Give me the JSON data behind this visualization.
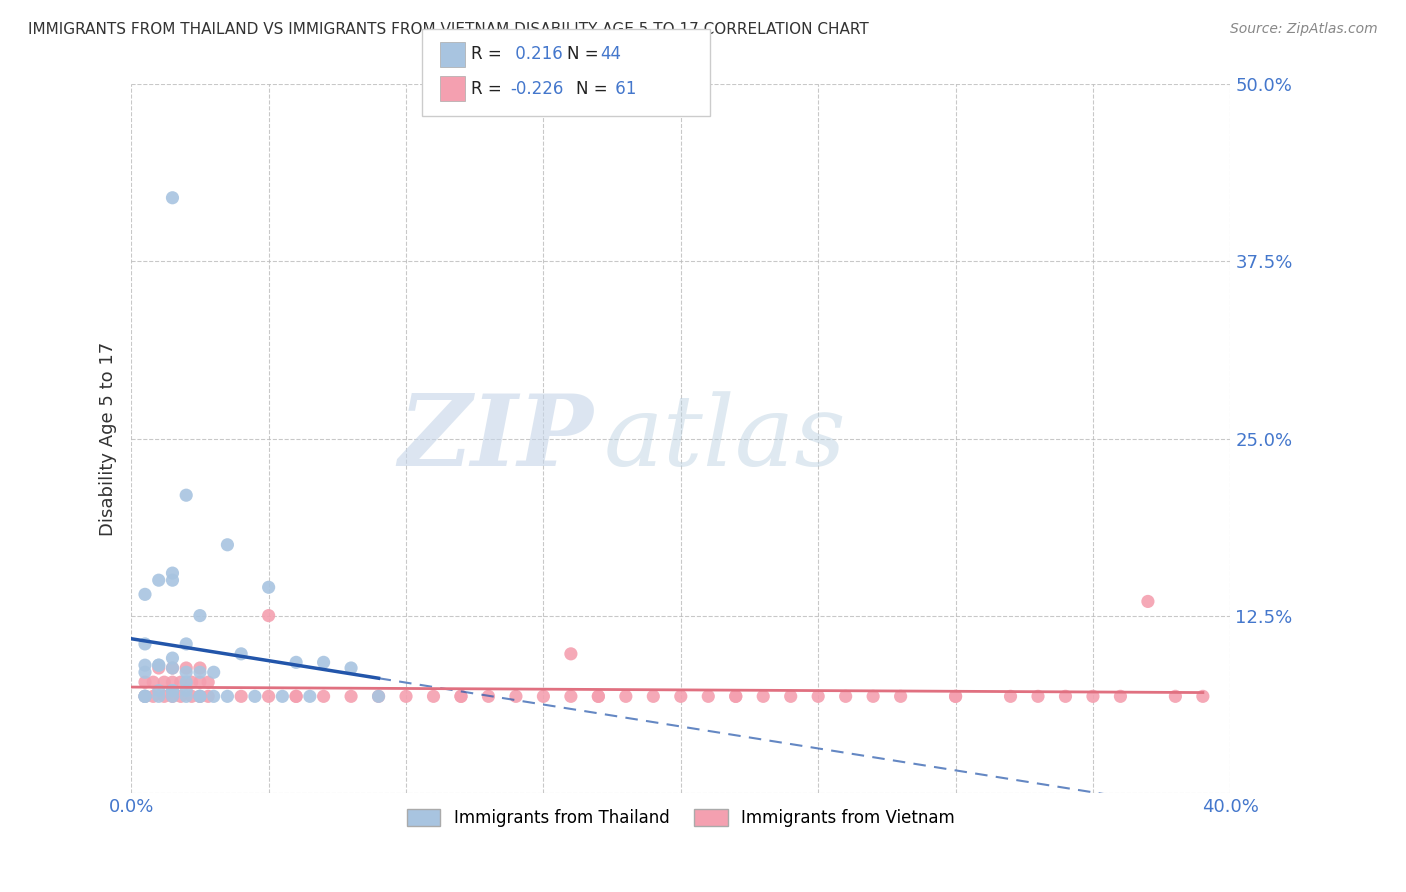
{
  "title": "IMMIGRANTS FROM THAILAND VS IMMIGRANTS FROM VIETNAM DISABILITY AGE 5 TO 17 CORRELATION CHART",
  "source": "Source: ZipAtlas.com",
  "ylabel": "Disability Age 5 to 17",
  "xlim": [
    0.0,
    0.4
  ],
  "ylim": [
    0.0,
    0.5
  ],
  "ytick_vals": [
    0.0,
    0.125,
    0.25,
    0.375,
    0.5
  ],
  "ytick_labels": [
    "",
    "12.5%",
    "25.0%",
    "37.5%",
    "50.0%"
  ],
  "xtick_vals": [
    0.0,
    0.05,
    0.1,
    0.15,
    0.2,
    0.25,
    0.3,
    0.35,
    0.4
  ],
  "xtick_labels": [
    "0.0%",
    "",
    "",
    "",
    "",
    "",
    "",
    "",
    "40.0%"
  ],
  "thailand_color": "#a8c4e0",
  "vietnam_color": "#f4a0b0",
  "thailand_line_color": "#2255aa",
  "vietnam_line_color": "#e07080",
  "r_thailand": 0.216,
  "n_thailand": 44,
  "r_vietnam": -0.226,
  "n_vietnam": 61,
  "legend_label_thailand": "Immigrants from Thailand",
  "legend_label_vietnam": "Immigrants from Vietnam",
  "watermark_zip": "ZIP",
  "watermark_atlas": "atlas",
  "background_color": "#ffffff",
  "grid_color": "#bbbbbb",
  "title_color": "#333333",
  "axis_label_color": "#333333",
  "tick_label_color": "#4477cc",
  "thailand_scatter_x": [
    0.015,
    0.02,
    0.005,
    0.005,
    0.01,
    0.015,
    0.02,
    0.01,
    0.015,
    0.005,
    0.025,
    0.015,
    0.02,
    0.01,
    0.005,
    0.025,
    0.03,
    0.015,
    0.02,
    0.035,
    0.04,
    0.05,
    0.06,
    0.07,
    0.065,
    0.045,
    0.055,
    0.035,
    0.08,
    0.09,
    0.01,
    0.02,
    0.015,
    0.005,
    0.025,
    0.03,
    0.015,
    0.02,
    0.015,
    0.005,
    0.015,
    0.025,
    0.01,
    0.005
  ],
  "thailand_scatter_y": [
    0.42,
    0.21,
    0.105,
    0.14,
    0.15,
    0.155,
    0.085,
    0.09,
    0.095,
    0.09,
    0.125,
    0.15,
    0.105,
    0.09,
    0.085,
    0.085,
    0.085,
    0.088,
    0.078,
    0.175,
    0.098,
    0.145,
    0.092,
    0.092,
    0.068,
    0.068,
    0.068,
    0.068,
    0.088,
    0.068,
    0.072,
    0.072,
    0.072,
    0.068,
    0.068,
    0.068,
    0.072,
    0.068,
    0.072,
    0.068,
    0.068,
    0.068,
    0.068,
    0.068
  ],
  "vietnam_scatter_x": [
    0.005,
    0.008,
    0.012,
    0.015,
    0.018,
    0.022,
    0.025,
    0.028,
    0.005,
    0.008,
    0.012,
    0.015,
    0.018,
    0.022,
    0.025,
    0.028,
    0.01,
    0.015,
    0.02,
    0.025,
    0.04,
    0.05,
    0.06,
    0.07,
    0.08,
    0.09,
    0.1,
    0.11,
    0.12,
    0.13,
    0.14,
    0.15,
    0.16,
    0.17,
    0.18,
    0.19,
    0.2,
    0.21,
    0.22,
    0.23,
    0.24,
    0.25,
    0.26,
    0.27,
    0.28,
    0.3,
    0.32,
    0.33,
    0.34,
    0.35,
    0.36,
    0.37,
    0.38,
    0.39,
    0.05,
    0.06,
    0.12,
    0.17,
    0.22,
    0.16,
    0.3
  ],
  "vietnam_scatter_y": [
    0.068,
    0.068,
    0.068,
    0.068,
    0.068,
    0.068,
    0.068,
    0.068,
    0.078,
    0.078,
    0.078,
    0.078,
    0.078,
    0.078,
    0.078,
    0.078,
    0.088,
    0.088,
    0.088,
    0.088,
    0.068,
    0.068,
    0.068,
    0.068,
    0.068,
    0.068,
    0.068,
    0.068,
    0.068,
    0.068,
    0.068,
    0.068,
    0.068,
    0.068,
    0.068,
    0.068,
    0.068,
    0.068,
    0.068,
    0.068,
    0.068,
    0.068,
    0.068,
    0.068,
    0.068,
    0.068,
    0.068,
    0.068,
    0.068,
    0.068,
    0.068,
    0.135,
    0.068,
    0.068,
    0.125,
    0.068,
    0.068,
    0.068,
    0.068,
    0.098,
    0.068
  ]
}
